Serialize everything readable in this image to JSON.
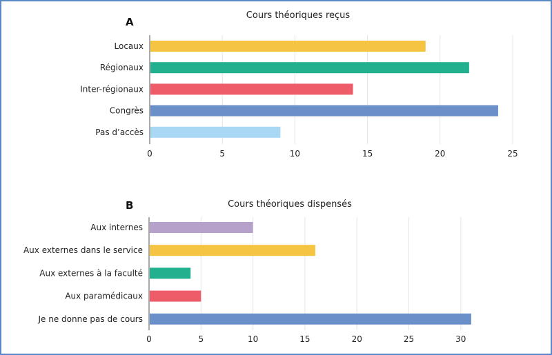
{
  "chart_data": [
    {
      "type": "bar",
      "orientation": "horizontal",
      "panel": "A",
      "title": "Cours théoriques reçus",
      "categories": [
        "Locaux",
        "Régionaux",
        "Inter-régionaux",
        "Congrès",
        "Pas d’accès"
      ],
      "values": [
        19,
        22,
        14,
        24,
        9
      ],
      "colors": [
        "#f5c443",
        "#23b08f",
        "#ee5c6a",
        "#6b8fc9",
        "#a9d8f5"
      ],
      "xlim": [
        0,
        25
      ],
      "xticks": [
        0,
        5,
        10,
        15,
        20,
        25
      ],
      "grid": true,
      "legend": "none"
    },
    {
      "type": "bar",
      "orientation": "horizontal",
      "panel": "B",
      "title": "Cours théoriques dispensés",
      "categories": [
        "Aux internes",
        "Aux externes dans le service",
        "Aux externes à la faculté",
        "Aux paramédicaux",
        "Je ne donne pas de cours"
      ],
      "values": [
        10,
        16,
        4,
        5,
        31
      ],
      "colors": [
        "#b6a1ca",
        "#f5c443",
        "#23b08f",
        "#ee5c6a",
        "#6b8fc9"
      ],
      "xlim": [
        0,
        33
      ],
      "xticks": [
        0,
        5,
        10,
        15,
        20,
        25,
        30
      ],
      "grid": true,
      "legend": "none"
    }
  ]
}
